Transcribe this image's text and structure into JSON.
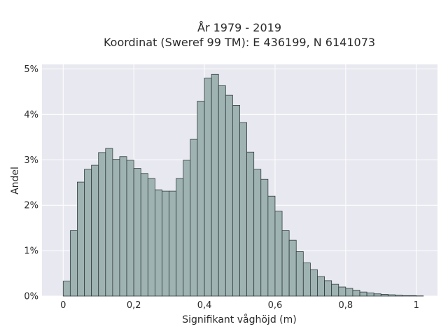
{
  "chart_data": {
    "type": "bar",
    "title": "År 1979 - 2019",
    "subtitle": "Koordinat (Sweref 99 TM): E 436199, N 6141073",
    "xlabel": "Signifikant våghöjd (m)",
    "ylabel": "Andel",
    "xlim": [
      -0.06,
      1.06
    ],
    "ylim": [
      0,
      5.1
    ],
    "x_ticks": [
      0,
      0.2,
      0.4,
      0.6,
      0.8,
      1
    ],
    "x_tick_labels": [
      "0",
      "0,2",
      "0,4",
      "0,6",
      "0,8",
      "1"
    ],
    "y_ticks": [
      0,
      1,
      2,
      3,
      4,
      5
    ],
    "y_tick_labels": [
      "0%",
      "1%",
      "2%",
      "3%",
      "4%",
      "5%"
    ],
    "grid": true,
    "bin_width": 0.02,
    "bin_starts": [
      0,
      0.02,
      0.04,
      0.06,
      0.08,
      0.1,
      0.12,
      0.14,
      0.16,
      0.18,
      0.2,
      0.22,
      0.24,
      0.26,
      0.28,
      0.3,
      0.32,
      0.34,
      0.36,
      0.38,
      0.4,
      0.42,
      0.44,
      0.46,
      0.48,
      0.5,
      0.52,
      0.54,
      0.56,
      0.58,
      0.6,
      0.62,
      0.64,
      0.66,
      0.68,
      0.7,
      0.72,
      0.74,
      0.76,
      0.78,
      0.8,
      0.82,
      0.84,
      0.86,
      0.88,
      0.9,
      0.92,
      0.94,
      0.96,
      0.98,
      1.0
    ],
    "values": [
      0.33,
      1.44,
      2.51,
      2.79,
      2.88,
      3.16,
      3.25,
      3.01,
      3.07,
      2.99,
      2.81,
      2.7,
      2.59,
      2.34,
      2.31,
      2.31,
      2.59,
      2.99,
      3.45,
      4.29,
      4.8,
      4.88,
      4.63,
      4.42,
      4.2,
      3.82,
      3.17,
      2.79,
      2.57,
      2.2,
      1.87,
      1.44,
      1.23,
      0.98,
      0.73,
      0.58,
      0.43,
      0.34,
      0.26,
      0.2,
      0.17,
      0.13,
      0.09,
      0.07,
      0.05,
      0.04,
      0.03,
      0.02,
      0.01,
      0.01,
      0.005
    ],
    "colors": {
      "bar_fill": "#9fb3b3",
      "bar_stroke": "#2f3b3b",
      "plot_background": "#e8e8f0",
      "grid": "#ffffff"
    }
  }
}
